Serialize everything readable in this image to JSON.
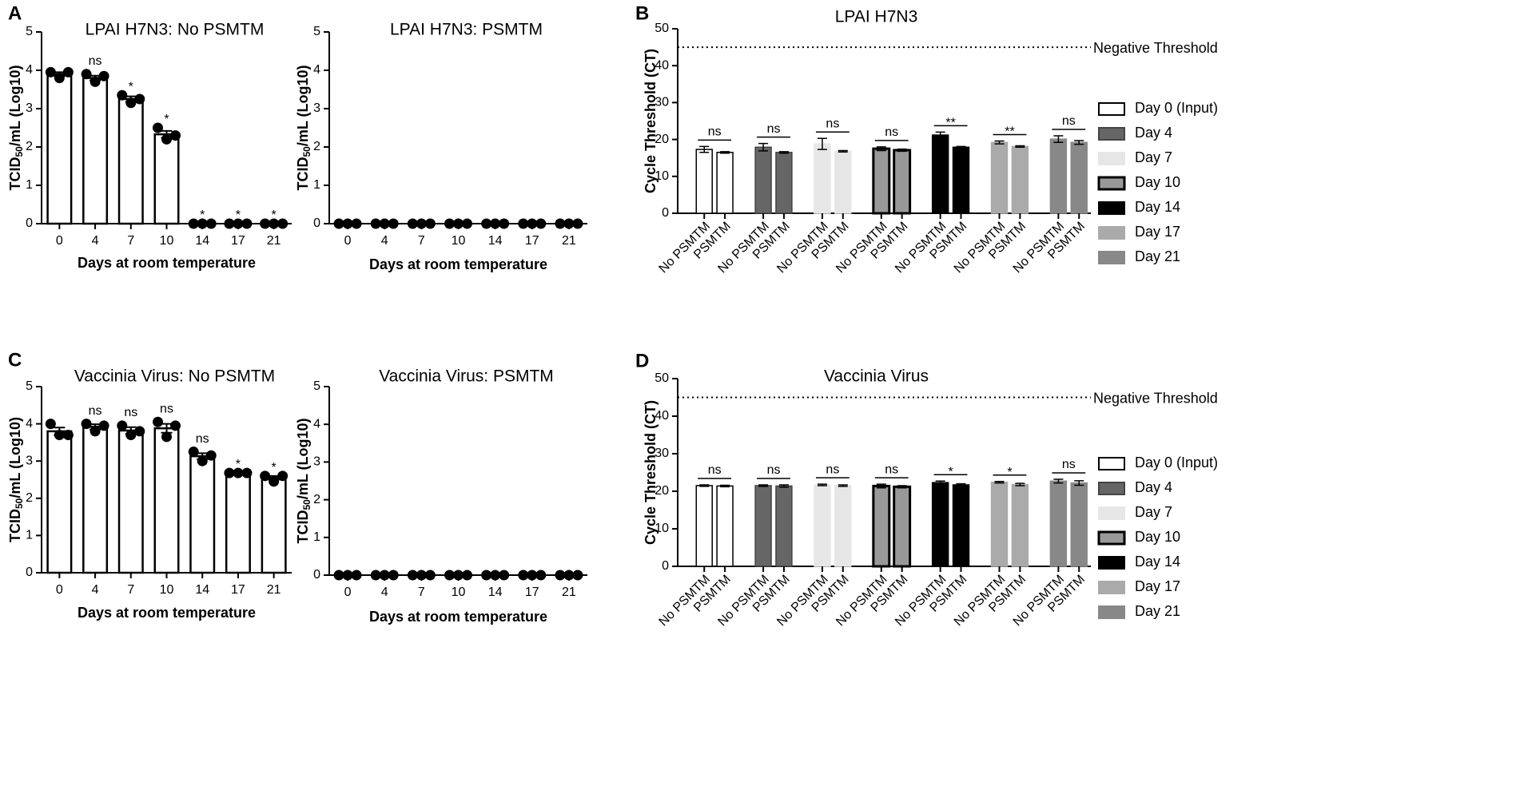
{
  "chart_data": [
    {
      "type": "bar",
      "panel_label": "A",
      "title": "LPAI H7N3:  No  PSMTM",
      "y_label": [
        "TCID",
        "50",
        "/mL  (Log10)"
      ],
      "x_label": "Days at room temperature",
      "categories": [
        "0",
        "4",
        "7",
        "10",
        "14",
        "17",
        "21"
      ],
      "values": [
        3.9,
        3.8,
        3.25,
        2.33,
        0,
        0,
        0
      ],
      "errors": [
        0.05,
        0.06,
        0.07,
        0.09,
        0,
        0,
        0
      ],
      "points": [
        [
          3.95,
          3.8,
          3.95
        ],
        [
          3.9,
          3.7,
          3.85
        ],
        [
          3.35,
          3.15,
          3.25
        ],
        [
          2.5,
          2.2,
          2.3
        ],
        [
          0,
          0,
          0
        ],
        [
          0,
          0,
          0
        ],
        [
          0,
          0,
          0
        ]
      ],
      "annotations": [
        null,
        "ns",
        "*",
        "*",
        "*",
        "*",
        "*"
      ],
      "color": "#ffffff",
      "edge": "#000000",
      "ylim": [
        0,
        5
      ],
      "yticks": [
        0,
        1,
        2,
        3,
        4,
        5
      ]
    },
    {
      "type": "bar",
      "title": "LPAI H7N3: PSMTM",
      "y_label": [
        "TCID",
        "50",
        "/mL  (Log10)"
      ],
      "x_label": "Days at room temperature",
      "categories": [
        "0",
        "4",
        "7",
        "10",
        "14",
        "17",
        "21"
      ],
      "values": [
        0,
        0,
        0,
        0,
        0,
        0,
        0
      ],
      "points": [
        [
          0,
          0,
          0
        ],
        [
          0,
          0,
          0
        ],
        [
          0,
          0,
          0
        ],
        [
          0,
          0,
          0
        ],
        [
          0,
          0,
          0
        ],
        [
          0,
          0,
          0
        ],
        [
          0,
          0,
          0
        ]
      ],
      "color": "#ffffff",
      "edge": "#000000",
      "ylim": [
        0,
        5
      ],
      "yticks": [
        0,
        1,
        2,
        3,
        4,
        5
      ]
    },
    {
      "type": "grouped_bar",
      "panel_label": "B",
      "title": "LPAI H7N3",
      "y_label": "Cycle Threshold (CT)",
      "categories": [
        "No PSMTM",
        "PSMTM"
      ],
      "series": [
        {
          "name": "Day 0 (Input)",
          "color": "#ffffff",
          "edge": "#000000",
          "values": [
            17.3,
            16.5
          ],
          "errors": [
            0.8,
            0.2
          ],
          "annotation": "ns"
        },
        {
          "name": "Day 4",
          "color": "#666666",
          "edge": "#444444",
          "values": [
            17.9,
            16.5
          ],
          "errors": [
            1.0,
            0.2
          ],
          "annotation": "ns"
        },
        {
          "name": "Day 7",
          "color": "#e6e6e6",
          "edge": "#e6e6e6",
          "values": [
            18.8,
            16.8
          ],
          "errors": [
            1.5,
            0.2
          ],
          "annotation": "ns"
        },
        {
          "name": "Day 10",
          "color": "#999999",
          "edge": "#000000",
          "values": [
            17.5,
            17.1
          ],
          "errors": [
            0.5,
            0.3
          ],
          "annotation": "ns"
        },
        {
          "name": "Day 14",
          "color": "#000000",
          "edge": "#000000",
          "values": [
            21.2,
            17.9
          ],
          "errors": [
            0.8,
            0.2
          ],
          "annotation": "**"
        },
        {
          "name": "Day 17",
          "color": "#aaaaaa",
          "edge": "#aaaaaa",
          "values": [
            19.2,
            18.1
          ],
          "errors": [
            0.4,
            0.2
          ],
          "annotation": "**"
        },
        {
          "name": "Day 21",
          "color": "#888888",
          "edge": "#888888",
          "values": [
            20.1,
            19.2
          ],
          "errors": [
            0.9,
            0.5
          ],
          "annotation": "ns"
        }
      ],
      "threshold": {
        "value": 45,
        "label": "Negative Threshold"
      },
      "legend": "right",
      "ylim": [
        0,
        50
      ],
      "yticks": [
        0,
        10,
        20,
        30,
        40,
        50
      ]
    },
    {
      "type": "bar",
      "panel_label": "C",
      "title": "Vaccinia  Virus: No PSMTM",
      "y_label": [
        "TCID",
        "50",
        "/mL  (Log10)"
      ],
      "x_label": "Days at room temperature",
      "categories": [
        "0",
        "4",
        "7",
        "10",
        "14",
        "17",
        "21"
      ],
      "values": [
        3.8,
        3.92,
        3.82,
        3.88,
        3.13,
        2.68,
        2.55
      ],
      "errors": [
        0.1,
        0.07,
        0.09,
        0.12,
        0.08,
        0.01,
        0.05
      ],
      "points": [
        [
          4.0,
          3.7,
          3.7
        ],
        [
          4.0,
          3.8,
          3.95
        ],
        [
          3.95,
          3.7,
          3.8
        ],
        [
          4.05,
          3.65,
          3.95
        ],
        [
          3.25,
          3.0,
          3.15
        ],
        [
          2.68,
          2.68,
          2.68
        ],
        [
          2.6,
          2.45,
          2.6
        ]
      ],
      "annotations": [
        null,
        "ns",
        "ns",
        "ns",
        "ns",
        "*",
        "*"
      ],
      "color": "#ffffff",
      "edge": "#000000",
      "ylim": [
        0,
        5
      ],
      "yticks": [
        0,
        1,
        2,
        3,
        4,
        5
      ]
    },
    {
      "type": "bar",
      "title": "Vaccinia Virus: PSMTM",
      "y_label": [
        "TCID",
        "50",
        "/mL  (Log10)"
      ],
      "x_label": "Days at room temperature",
      "categories": [
        "0",
        "4",
        "7",
        "10",
        "14",
        "17",
        "21"
      ],
      "values": [
        0,
        0,
        0,
        0,
        0,
        0,
        0
      ],
      "points": [
        [
          0,
          0,
          0
        ],
        [
          0,
          0,
          0
        ],
        [
          0,
          0,
          0
        ],
        [
          0,
          0,
          0
        ],
        [
          0,
          0,
          0
        ],
        [
          0,
          0,
          0
        ],
        [
          0,
          0,
          0
        ]
      ],
      "color": "#ffffff",
      "edge": "#000000",
      "ylim": [
        0,
        5
      ],
      "yticks": [
        0,
        1,
        2,
        3,
        4,
        5
      ]
    },
    {
      "type": "grouped_bar",
      "panel_label": "D",
      "title": "Vaccinia Virus",
      "y_label": "Cycle Threshold (CT)",
      "categories": [
        "No PSMTM",
        "PSMTM"
      ],
      "series": [
        {
          "name": "Day 0 (Input)",
          "color": "#ffffff",
          "edge": "#000000",
          "values": [
            21.5,
            21.4
          ],
          "errors": [
            0.2,
            0.2
          ],
          "annotation": "ns"
        },
        {
          "name": "Day 4",
          "color": "#666666",
          "edge": "#444444",
          "values": [
            21.5,
            21.4
          ],
          "errors": [
            0.2,
            0.3
          ],
          "annotation": "ns"
        },
        {
          "name": "Day 7",
          "color": "#e6e6e6",
          "edge": "#e6e6e6",
          "values": [
            21.7,
            21.5
          ],
          "errors": [
            0.2,
            0.2
          ],
          "annotation": "ns"
        },
        {
          "name": "Day 10",
          "color": "#999999",
          "edge": "#000000",
          "values": [
            21.4,
            21.2
          ],
          "errors": [
            0.5,
            0.3
          ],
          "annotation": "ns"
        },
        {
          "name": "Day 14",
          "color": "#000000",
          "edge": "#000000",
          "values": [
            22.3,
            21.7
          ],
          "errors": [
            0.4,
            0.3
          ],
          "annotation": "*"
        },
        {
          "name": "Day 17",
          "color": "#aaaaaa",
          "edge": "#aaaaaa",
          "values": [
            22.4,
            21.8
          ],
          "errors": [
            0.2,
            0.3
          ],
          "annotation": "*"
        },
        {
          "name": "Day 21",
          "color": "#888888",
          "edge": "#888888",
          "values": [
            22.7,
            22.2
          ],
          "errors": [
            0.5,
            0.6
          ],
          "annotation": "ns"
        }
      ],
      "threshold": {
        "value": 45,
        "label": "Negative Threshold"
      },
      "legend": "right",
      "ylim": [
        0,
        50
      ],
      "yticks": [
        0,
        10,
        20,
        30,
        40,
        50
      ]
    }
  ]
}
